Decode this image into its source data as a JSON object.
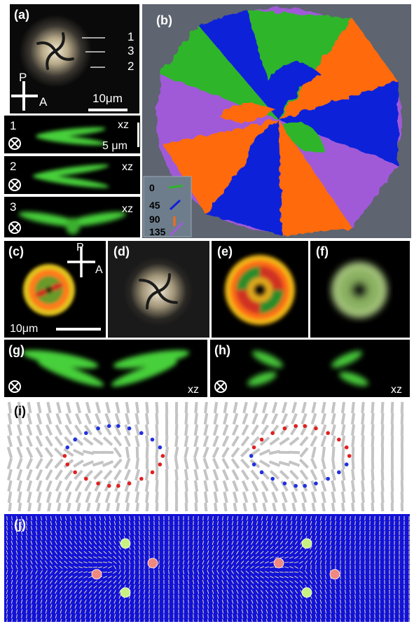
{
  "panel_a": {
    "label": "(a)",
    "line1": "1",
    "line3": "3",
    "line2": "2",
    "scale": "10μm",
    "P": "P",
    "A": "A"
  },
  "panel_b": {
    "label": "(b)",
    "legend": [
      "0",
      "45",
      "90",
      "135"
    ],
    "colors": {
      "0": "#2fb52a",
      "45": "#1020d8",
      "90": "#ff6a10",
      "135": "#a05ad8"
    }
  },
  "strip_1": {
    "label": "1",
    "axis": "xz",
    "scale": "5 μm"
  },
  "strip_2": {
    "label": "2",
    "axis": "xz"
  },
  "strip_3": {
    "label": "3",
    "axis": "xz"
  },
  "panel_c": {
    "label": "(c)",
    "P": "P",
    "A": "A",
    "scale": "10μm"
  },
  "panel_d": {
    "label": "(d)"
  },
  "panel_e": {
    "label": "(e)"
  },
  "panel_f": {
    "label": "(f)"
  },
  "panel_g": {
    "label": "(g)",
    "axis": "xz"
  },
  "panel_h": {
    "label": "(h)",
    "axis": "xz"
  },
  "panel_i": {
    "label": "(i)"
  },
  "panel_j": {
    "label": "(j)"
  }
}
